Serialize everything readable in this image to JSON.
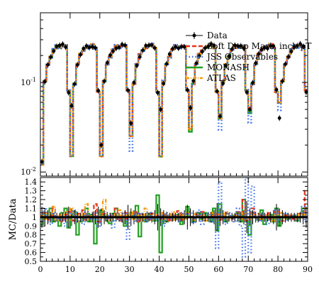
{
  "chart_data": [
    {
      "type": "line",
      "panel": "main",
      "yscale": "log",
      "ylim": [
        0.009,
        0.6
      ],
      "xlim": [
        0,
        90
      ],
      "yticks": [
        {
          "value": 0.01,
          "label": "10^-2"
        },
        {
          "value": 0.1,
          "label": "10^-1"
        }
      ],
      "legend_placement": "top-right",
      "legend": [
        "Data",
        "Soft Drop Mass, incl. pT",
        "JSS Observables",
        "MONASH",
        "ATLAS"
      ],
      "colors": {
        "data": "#000000",
        "softdrop": "#e8341c",
        "jss": "#3b6ee8",
        "monash": "#22a022",
        "atlas": "#f59a12"
      },
      "group_profile": [
        0.02,
        0.1,
        0.16,
        0.2,
        0.23,
        0.25,
        0.25,
        0.26,
        0.25,
        0.08
      ],
      "group_minima": [
        0.012,
        0.015,
        0.015,
        0.025,
        0.015,
        0.03,
        0.04,
        0.05,
        0.06
      ],
      "monash_minima": [
        0.012,
        0.015,
        0.015,
        0.025,
        0.015,
        0.028,
        0.04,
        0.045,
        0.06
      ],
      "jss_minima": [
        0.012,
        0.015,
        0.015,
        0.017,
        0.015,
        0.035,
        0.03,
        0.035,
        0.05
      ],
      "data_minima": [
        0.013,
        0.055,
        0.02,
        0.035,
        0.05,
        0.052,
        0.042,
        0.05,
        0.04
      ],
      "data_first_second": [
        0.055,
        0.12
      ]
    },
    {
      "type": "line",
      "panel": "ratio",
      "ylabel": "MC/Data",
      "ylim": [
        0.5,
        1.45
      ],
      "xlim": [
        0,
        90
      ],
      "yticks": [
        0.5,
        0.6,
        0.7,
        0.8,
        0.9,
        1,
        1.1,
        1.2,
        1.3,
        1.4
      ],
      "xticks": [
        0,
        10,
        20,
        30,
        40,
        50,
        60,
        70,
        80,
        90
      ],
      "monash_ratio": [
        0.92,
        1.05,
        0.98,
        1.1,
        0.95,
        1.0,
        0.9,
        1.05,
        1.1,
        0.88,
        1.02,
        1.06,
        0.8,
        0.95,
        1.0,
        1.1,
        0.95,
        1.03,
        0.7,
        1.0,
        1.08,
        1.02,
        0.96,
        0.93,
        1.04,
        1.1,
        1.0,
        0.97,
        0.9,
        1.02,
        1.05,
        1.0,
        1.13,
        0.78,
        1.0,
        0.95,
        1.04,
        1.0,
        0.96,
        1.25,
        0.6,
        1.02,
        0.95,
        1.0,
        1.02,
        0.98,
        1.03,
        0.92,
        1.0,
        1.12,
        1.0,
        0.95,
        1.0,
        1.05,
        0.98,
        1.05,
        1.0,
        0.95,
        1.1,
        0.85,
        1.15,
        1.0,
        0.95,
        1.0,
        1.0,
        1.02,
        1.05,
        0.95,
        1.2,
        0.95,
        0.8,
        1.05,
        1.0,
        0.97,
        1.08,
        0.92,
        1.0,
        1.03,
        0.95,
        1.1,
        0.9,
        1.0,
        1.02,
        0.98,
        1.0,
        1.02,
        0.96,
        1.0,
        1.1,
        1.0
      ],
      "jss_ratio": [
        0.95,
        1.1,
        1.0,
        0.92,
        1.05,
        1.0,
        0.97,
        1.02,
        0.9,
        1.05,
        1.0,
        1.08,
        0.95,
        1.0,
        0.92,
        1.06,
        1.0,
        0.98,
        1.05,
        0.9,
        1.0,
        1.03,
        0.96,
        1.04,
        0.88,
        1.02,
        1.0,
        0.95,
        1.06,
        0.75,
        1.0,
        1.02,
        0.96,
        1.04,
        1.0,
        0.95,
        1.05,
        0.98,
        1.0,
        0.96,
        1.02,
        0.9,
        1.05,
        1.0,
        0.97,
        1.02,
        0.95,
        1.0,
        1.04,
        0.98,
        1.06,
        0.94,
        1.0,
        1.08,
        0.92,
        1.0,
        1.05,
        0.95,
        1.0,
        0.65,
        1.4,
        1.0,
        0.92,
        1.05,
        1.0,
        0.95,
        1.1,
        0.9,
        0.55,
        1.45,
        0.6,
        1.35,
        1.0,
        0.95,
        1.05,
        1.0,
        0.92,
        1.02,
        1.0,
        1.08,
        0.95,
        1.0,
        1.04,
        0.97,
        1.0,
        1.03,
        0.95,
        1.0,
        1.12,
        0.95
      ],
      "softdrop_ratio": [
        1.0,
        1.05,
        0.97,
        1.02,
        1.1,
        0.98,
        1.0,
        0.95,
        1.03,
        1.06,
        1.0,
        0.96,
        1.04,
        1.0,
        1.08,
        0.97,
        1.02,
        1.0,
        1.15,
        0.95,
        1.0,
        1.04,
        0.97,
        1.02,
        1.0,
        1.1,
        0.96,
        1.0,
        1.05,
        0.98,
        1.02,
        1.0,
        1.06,
        0.95,
        1.03,
        1.0,
        0.97,
        1.04,
        1.0,
        1.02,
        0.98,
        1.05,
        1.0,
        0.96,
        1.03,
        1.0,
        1.07,
        0.97,
        1.0,
        1.04,
        1.0,
        0.98,
        1.03,
        1.0,
        1.06,
        0.96,
        1.0,
        1.02,
        1.0,
        1.04,
        0.97,
        1.0,
        1.05,
        1.0,
        0.98,
        1.02,
        1.06,
        1.0,
        1.2,
        0.96,
        1.0,
        1.1,
        1.0,
        0.97,
        1.02,
        1.0,
        1.05,
        0.98,
        1.0,
        1.08,
        1.0,
        0.96,
        1.03,
        1.0,
        1.02,
        0.98,
        1.0,
        1.04,
        1.0,
        1.3
      ],
      "atlas_ratio": [
        1.02,
        0.98,
        1.05,
        1.0,
        1.12,
        0.96,
        1.03,
        1.0,
        1.06,
        0.97,
        1.1,
        1.0,
        0.95,
        1.04,
        1.0,
        1.15,
        0.97,
        1.02,
        1.0,
        1.05,
        0.98,
        1.2,
        1.0,
        0.96,
        1.03,
        1.0,
        1.08,
        0.97,
        1.02,
        1.0,
        1.06,
        0.98,
        1.0,
        1.04,
        0.96,
        1.1,
        1.0,
        0.97,
        1.03,
        1.0,
        1.05,
        0.98,
        1.02,
        1.0,
        1.06,
        0.97,
        1.0,
        1.03,
        0.98,
        1.05,
        1.0,
        0.97,
        1.04,
        1.0,
        1.02,
        0.96,
        1.0,
        1.05,
        1.0,
        0.98,
        1.03,
        1.0,
        1.06,
        0.97,
        1.0,
        1.02,
        1.0,
        0.98,
        1.05,
        1.0,
        0.97,
        1.03,
        1.0,
        1.04,
        0.98,
        1.0,
        1.02,
        1.0,
        0.96,
        1.03,
        1.0,
        1.05,
        0.98,
        1.0,
        1.02,
        1.0,
        0.97,
        1.04,
        1.0,
        1.1
      ],
      "data_error": [
        0.12,
        0.1,
        0.08,
        0.06,
        0.05,
        0.05,
        0.05,
        0.05,
        0.06,
        0.12,
        0.1,
        0.08,
        0.06,
        0.05,
        0.05,
        0.05,
        0.05,
        0.06,
        0.08,
        0.12,
        0.1,
        0.08,
        0.06,
        0.05,
        0.05,
        0.05,
        0.05,
        0.06,
        0.08,
        0.14,
        0.1,
        0.08,
        0.06,
        0.05,
        0.05,
        0.05,
        0.05,
        0.06,
        0.08,
        0.15,
        0.1,
        0.08,
        0.06,
        0.05,
        0.05,
        0.05,
        0.05,
        0.06,
        0.08,
        0.14,
        0.1,
        0.08,
        0.06,
        0.05,
        0.05,
        0.05,
        0.05,
        0.06,
        0.08,
        0.16,
        0.1,
        0.08,
        0.06,
        0.05,
        0.05,
        0.05,
        0.05,
        0.06,
        0.08,
        0.18,
        0.1,
        0.08,
        0.06,
        0.05,
        0.05,
        0.05,
        0.05,
        0.06,
        0.08,
        0.15,
        0.1,
        0.08,
        0.06,
        0.05,
        0.05,
        0.05,
        0.05,
        0.06,
        0.08,
        0.12
      ]
    }
  ]
}
